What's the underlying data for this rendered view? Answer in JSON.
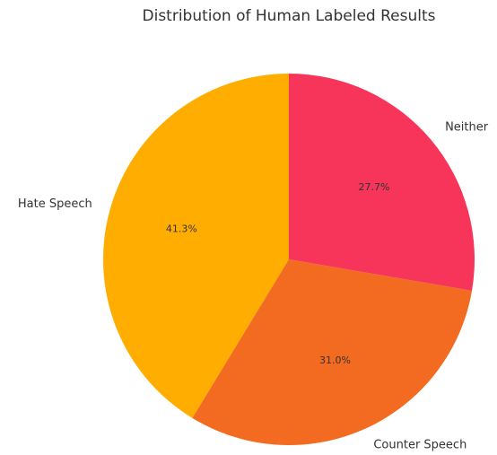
{
  "chart_data": {
    "type": "pie",
    "title": "Distribution of Human Labeled Results",
    "categories": [
      "Hate Speech",
      "Counter Speech",
      "Neither"
    ],
    "values": [
      41.3,
      31.0,
      27.7
    ],
    "value_labels": [
      "41.3%",
      "31.0%",
      "27.7%"
    ],
    "colors": [
      "#ffad00",
      "#f26b21",
      "#f7345a"
    ]
  }
}
